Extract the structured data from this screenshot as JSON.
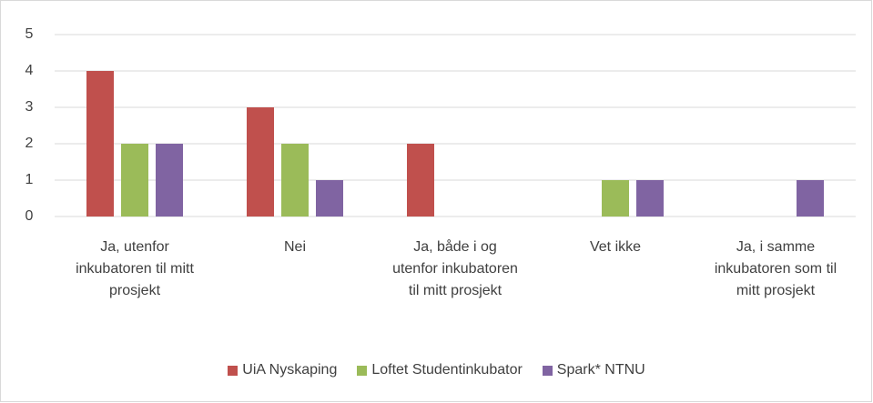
{
  "chart_data": {
    "type": "bar",
    "categories": [
      "Ja, utenfor inkubatoren til mitt prosjekt",
      "Nei",
      "Ja, både i og utenfor inkubatoren til mitt prosjekt",
      "Vet ikke",
      "Ja, i samme inkubatoren som til mitt prosjekt"
    ],
    "series": [
      {
        "name": "UiA Nyskaping",
        "color": "#c0504d",
        "values": [
          4,
          3,
          2,
          0,
          0
        ]
      },
      {
        "name": "Loftet Studentinkubator",
        "color": "#9bbb59",
        "values": [
          2,
          2,
          0,
          1,
          0
        ]
      },
      {
        "name": "Spark* NTNU",
        "color": "#8064a2",
        "values": [
          2,
          1,
          0,
          1,
          1
        ]
      }
    ],
    "ylim": [
      0,
      5
    ],
    "yticks": [
      0,
      1,
      2,
      3,
      4,
      5
    ],
    "grid": true,
    "legend": "bottom"
  }
}
